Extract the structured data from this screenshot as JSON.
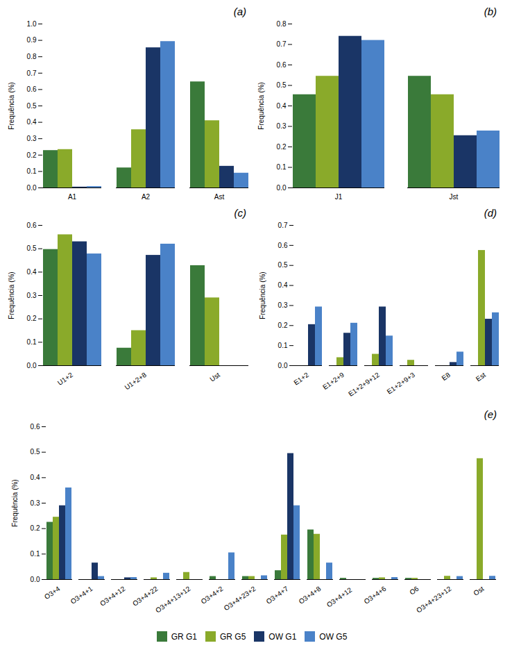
{
  "chart_data": [
    {
      "type": "bar",
      "title": "(a)",
      "ylabel": "Frequência (%)",
      "categories": [
        "A1",
        "A2",
        "Ast"
      ],
      "series": [
        {
          "name": "GR G1",
          "color": "#3a7a3a",
          "values": [
            0.228,
            0.122,
            0.647
          ]
        },
        {
          "name": "GR G5",
          "color": "#8aaa2a",
          "values": [
            0.234,
            0.355,
            0.41
          ]
        },
        {
          "name": "OW G1",
          "color": "#1a3566",
          "values": [
            0.005,
            0.855,
            0.132
          ]
        },
        {
          "name": "OW G5",
          "color": "#4a82c8",
          "values": [
            0.008,
            0.893,
            0.09
          ]
        }
      ],
      "ylim": [
        0,
        1.0
      ],
      "yticks": [
        {
          "value": 0,
          "label": "0.0"
        },
        0.1,
        0.2,
        0.3,
        0.4,
        0.5,
        0.6,
        0.7,
        0.8,
        0.9,
        {
          "value": 1.0,
          "label": "1.0"
        }
      ]
    },
    {
      "type": "bar",
      "title": "(b)",
      "ylabel": "Frequência (%)",
      "categories": [
        "J1",
        "Jst"
      ],
      "series": [
        {
          "name": "GR G1",
          "color": "#3a7a3a",
          "values": [
            0.455,
            0.545
          ]
        },
        {
          "name": "GR G5",
          "color": "#8aaa2a",
          "values": [
            0.545,
            0.455
          ]
        },
        {
          "name": "OW G1",
          "color": "#1a3566",
          "values": [
            0.74,
            0.255
          ]
        },
        {
          "name": "OW G5",
          "color": "#4a82c8",
          "values": [
            0.72,
            0.278
          ]
        }
      ],
      "ylim": [
        0,
        0.8
      ],
      "yticks": [
        {
          "value": 0,
          "label": "0.0"
        },
        0.1,
        0.2,
        0.3,
        0.4,
        0.5,
        0.6,
        0.7,
        0.8
      ]
    },
    {
      "type": "bar",
      "title": "(c)",
      "ylabel": "Frequência (%)",
      "categories": [
        "U1+2",
        "U1+2+8",
        "Ust"
      ],
      "series": [
        {
          "name": "GR G1",
          "color": "#3a7a3a",
          "values": [
            0.497,
            0.075,
            0.428
          ]
        },
        {
          "name": "GR G5",
          "color": "#8aaa2a",
          "values": [
            0.56,
            0.15,
            0.29
          ]
        },
        {
          "name": "OW G1",
          "color": "#1a3566",
          "values": [
            0.53,
            0.472,
            0.0
          ]
        },
        {
          "name": "OW G5",
          "color": "#4a82c8",
          "values": [
            0.478,
            0.52,
            0.0
          ]
        }
      ],
      "ylim": [
        0,
        0.6
      ],
      "yticks": [
        {
          "value": 0,
          "label": "0.0"
        },
        0.1,
        0.2,
        0.3,
        0.4,
        0.5,
        0.6
      ]
    },
    {
      "type": "bar",
      "title": "(d)",
      "ylabel": "Frequência (%)",
      "categories": [
        "E1+2",
        "E1+2+9",
        "E1+2+9+12",
        "E1+2+9+3",
        "E8",
        "Est"
      ],
      "series": [
        {
          "name": "GR G1",
          "color": "#3a7a3a",
          "values": [
            0.0,
            0.0,
            0.0,
            0.0,
            0.0,
            0.0
          ]
        },
        {
          "name": "GR G5",
          "color": "#8aaa2a",
          "values": [
            0.0,
            0.04,
            0.057,
            0.027,
            0.0,
            0.575
          ]
        },
        {
          "name": "OW G1",
          "color": "#1a3566",
          "values": [
            0.205,
            0.162,
            0.293,
            0.0,
            0.016,
            0.232
          ]
        },
        {
          "name": "OW G5",
          "color": "#4a82c8",
          "values": [
            0.293,
            0.212,
            0.148,
            0.0,
            0.068,
            0.264
          ]
        }
      ],
      "ylim": [
        0,
        0.7
      ],
      "yticks": [
        {
          "value": 0,
          "label": "0.0"
        },
        0.1,
        0.2,
        0.3,
        0.4,
        0.5,
        0.6,
        0.7
      ]
    },
    {
      "type": "bar",
      "title": "(e)",
      "ylabel": "Frequência (%)",
      "categories": [
        "O3+4",
        "O3+4+1",
        "O3+4+12",
        "O3+4+22",
        "O3+4+13+12",
        "O3+4+2",
        "O3+4+23+2",
        "O3+4+7",
        "O3+4+8",
        "O3+4+12 ",
        "O3+4+6",
        "O6",
        "O3+4+23+12",
        "Ost"
      ],
      "series": [
        {
          "name": "GR G1",
          "color": "#3a7a3a",
          "values": [
            0.225,
            0.0,
            0.0,
            0.0,
            0.0,
            0.012,
            0.012,
            0.035,
            0.195,
            0.005,
            0.005,
            0.005,
            0.0,
            0.0
          ]
        },
        {
          "name": "GR G5",
          "color": "#8aaa2a",
          "values": [
            0.245,
            0.0,
            0.0,
            0.007,
            0.028,
            0.0,
            0.012,
            0.175,
            0.178,
            0.0,
            0.007,
            0.005,
            0.013,
            0.475
          ]
        },
        {
          "name": "OW G1",
          "color": "#1a3566",
          "values": [
            0.29,
            0.065,
            0.007,
            0.0,
            0.0,
            0.0,
            0.0,
            0.495,
            0.0,
            0.0,
            0.0,
            0.0,
            0.0,
            0.0
          ]
        },
        {
          "name": "OW G5",
          "color": "#4a82c8",
          "values": [
            0.36,
            0.012,
            0.008,
            0.025,
            0.0,
            0.105,
            0.015,
            0.29,
            0.065,
            0.0,
            0.008,
            0.0,
            0.012,
            0.013
          ]
        }
      ],
      "ylim": [
        0,
        0.6
      ],
      "yticks": [
        {
          "value": 0,
          "label": "0.0"
        },
        0.1,
        0.2,
        0.3,
        0.4,
        0.5,
        0.6
      ]
    }
  ]
}
